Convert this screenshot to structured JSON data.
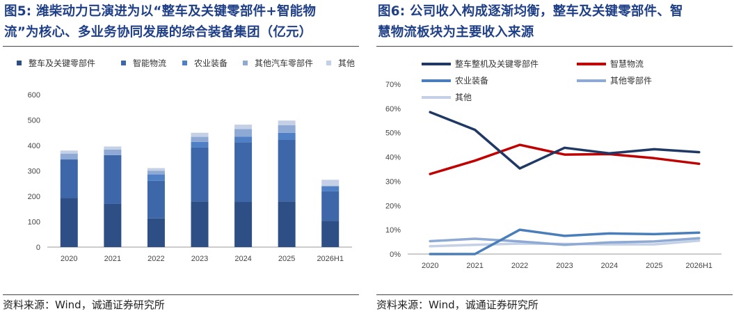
{
  "left": {
    "title_line1": "图5:   潍柴动力已演进为以“整车及关键零部件+智能物",
    "title_line2": "流”为核心、多业务协同发展的综合装备集团（亿元）",
    "source": "资料来源：Wind，诚通证券研究所"
  },
  "right": {
    "title_line1": "图6:   公司收入构成逐渐均衡，整车及关键零部件、智",
    "title_line2": "慧物流板块为主要收入来源",
    "source": "资料来源：Wind，诚通证券研究所"
  },
  "chart_data": [
    {
      "type": "bar",
      "stacked": true,
      "categories": [
        "2020",
        "2021",
        "2022",
        "2023",
        "2024",
        "2025",
        "2026H1"
      ],
      "ylim": [
        0,
        600
      ],
      "yticks": [
        "0",
        "100",
        "200",
        "300",
        "400",
        "500",
        "600"
      ],
      "grid": false,
      "legend_position": "top",
      "series": [
        {
          "name": "整车及关键零部件",
          "color": "#2e4f86",
          "values": [
            193,
            170,
            113,
            180,
            178,
            180,
            103
          ]
        },
        {
          "name": "智能物流",
          "color": "#3d67a8",
          "values": [
            152,
            192,
            148,
            212,
            235,
            242,
            117
          ]
        },
        {
          "name": "农业装备",
          "color": "#4f7fc4",
          "values": [
            0,
            0,
            25,
            22,
            22,
            28,
            20
          ]
        },
        {
          "name": "其他汽车零部件",
          "color": "#8ea9d3",
          "values": [
            23,
            22,
            14,
            20,
            30,
            30,
            0
          ]
        },
        {
          "name": "其他",
          "color": "#c3d0e6",
          "values": [
            12,
            12,
            11,
            16,
            17,
            18,
            25
          ]
        }
      ]
    },
    {
      "type": "line",
      "x": [
        "2020",
        "2021",
        "2022",
        "2023",
        "2024",
        "2025",
        "2026H1"
      ],
      "ylim": [
        0,
        70
      ],
      "yticks": [
        "0%",
        "10%",
        "20%",
        "30%",
        "40%",
        "50%",
        "60%",
        "70%"
      ],
      "grid": false,
      "legend_position": "top",
      "series": [
        {
          "name": "整车整机及关键零部件",
          "color": "#1f3864",
          "values": [
            58.5,
            51.2,
            35.3,
            43.8,
            41.5,
            43.2,
            42.0
          ]
        },
        {
          "name": "智慧物流",
          "color": "#c00000",
          "values": [
            33.0,
            38.5,
            45.0,
            41.0,
            41.2,
            39.5,
            37.2
          ]
        },
        {
          "name": "农业装备",
          "color": "#4a7ebb",
          "values": [
            0,
            0,
            10.0,
            7.5,
            8.5,
            8.2,
            8.8
          ]
        },
        {
          "name": "其他零部件",
          "color": "#8ea9d3",
          "values": [
            5.3,
            6.3,
            5.2,
            3.8,
            4.8,
            5.2,
            6.5
          ]
        },
        {
          "name": "其他",
          "color": "#c3d0e6",
          "values": [
            3.2,
            3.8,
            4.3,
            4.2,
            4.0,
            4.0,
            5.5
          ]
        }
      ]
    }
  ]
}
